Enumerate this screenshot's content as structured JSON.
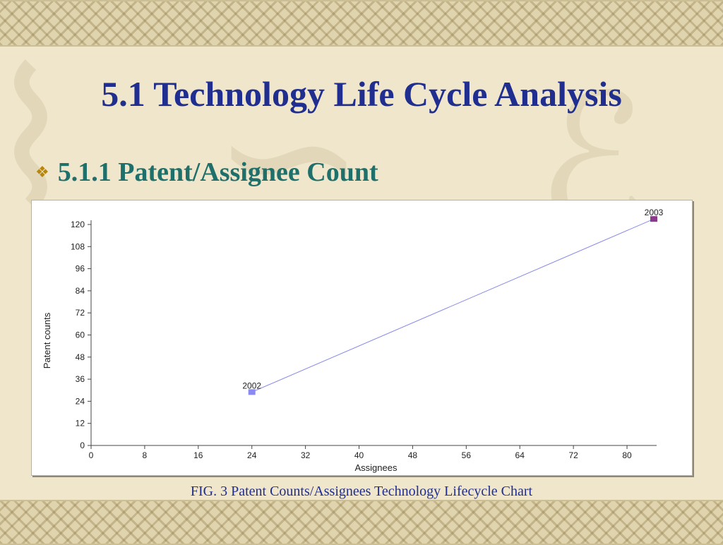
{
  "slide": {
    "title": "5.1 Technology Life Cycle Analysis",
    "bullet": "5.1.1 Patent/Assignee Count",
    "bullet_icon": "diamond-bullet-icon",
    "caption": "FIG. 3 Patent Counts/Assignees Technology Lifecycle Chart"
  },
  "colors": {
    "title": "#1f2e8f",
    "subtitle": "#1f6f6a",
    "line": "#8888e8",
    "point_2002": "#8a8af0",
    "point_2003": "#8b3a8b"
  },
  "chart_data": {
    "type": "line",
    "title": "",
    "xlabel": "Assignees",
    "ylabel": "Patent counts",
    "xlim": [
      0,
      84
    ],
    "ylim": [
      0,
      120
    ],
    "x_ticks": [
      0,
      8,
      16,
      24,
      32,
      40,
      48,
      56,
      64,
      72,
      80
    ],
    "y_ticks": [
      0,
      12,
      24,
      36,
      48,
      60,
      72,
      84,
      96,
      108,
      120
    ],
    "grid": false,
    "series": [
      {
        "points": [
          {
            "x": 24,
            "y": 29,
            "label": "2002"
          },
          {
            "x": 84,
            "y": 123,
            "label": "2003"
          }
        ]
      }
    ]
  }
}
